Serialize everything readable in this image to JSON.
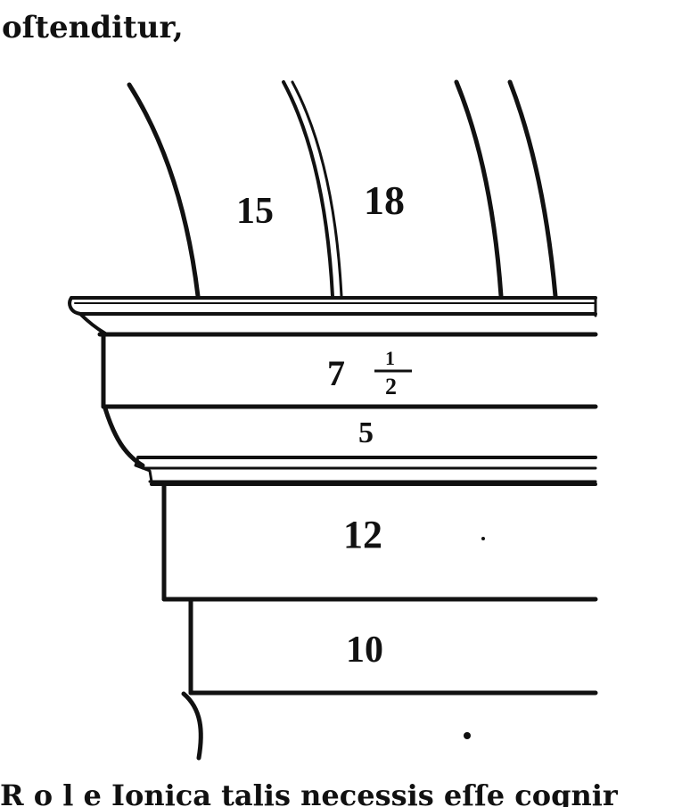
{
  "text": {
    "top_fragment": "oſtenditur,",
    "bottom_fragment": "R  o  l  e Ionica  talis  necessis  eſſe  cognir"
  },
  "labels": {
    "arch_left": "15",
    "arch_right": "18",
    "band_7": "7",
    "band_7_frac_num": "1",
    "band_7_frac_den": "2",
    "band_5": "5",
    "band_12": "12",
    "band_10": "10"
  },
  "colors": {
    "ink": "#111111",
    "paper": "#ffffff"
  }
}
